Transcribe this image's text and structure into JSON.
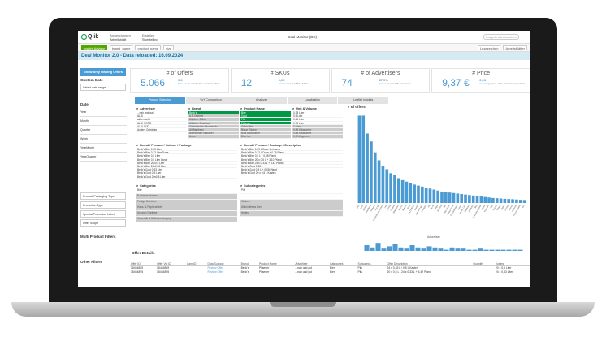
{
  "app": {
    "logo": "Qlik",
    "nav": [
      {
        "top": "Anwendungen",
        "bottom": "Arbeitsblatt"
      },
      {
        "top": "Erstellen",
        "bottom": "Storytelling"
      }
    ],
    "title": "Deal Monitor (DE)",
    "search_placeholder": "Insights durchsuchen"
  },
  "toolbar": {
    "insight_advisor": "Insight Advisor",
    "tags": [
      "brand_name",
      "product_name",
      "size"
    ],
    "buttons": [
      "Lesezeichen",
      "Arbeitsblätter"
    ]
  },
  "sheet_title": "Deal Monitor 2.0 - Data reloaded: 16.09.2024",
  "sidebar": {
    "lead_button": "Show only leading Offers",
    "custom_date_header": "Custom Date",
    "select_range": "Select date range",
    "date_header": "Date",
    "date_rows": [
      "Year",
      "Month",
      "Quarter",
      "Week",
      "YearMonth",
      "YearQuarter"
    ],
    "filter_boxes": [
      "Product Packaging Type",
      "Promotion Type",
      "Special Promotion Label",
      "Offer Scope"
    ],
    "multi_header": "Multi Product Filters",
    "other_header": "Other Filters"
  },
  "kpis": [
    {
      "title": "# of Offers",
      "value": "5.066",
      "change": "0,3",
      "sub": "from a total of 1,91 Mio available offers"
    },
    {
      "title": "# SKUs",
      "value": "12",
      "change": "0,05",
      "sub": "from a total of 48.611 SKUs"
    },
    {
      "title": "# of Advertisers",
      "value": "74",
      "change": "37,9%",
      "sub": "from a total of 195 advertisers"
    },
    {
      "title": "# Price",
      "value": "9,37 €",
      "change": "0,23",
      "sub": "is average price of the advertised products"
    }
  ],
  "tabs": [
    "Product Selection",
    "YoY Comparison",
    "Analyzer",
    "Localization",
    "Leaflet Insights"
  ],
  "filters": {
    "advertiser": {
      "title": "Advertiser",
      "items": [
        "...nah und gut",
        "ALDI",
        "aktiv-markt",
        "ALDI NORD",
        "ALDI SÜD",
        "Anders Getränke"
      ]
    },
    "brand": {
      "title": "Brand",
      "items": [
        "Beck's",
        "A.B.Original",
        "Allgäuer Büble",
        "Allgäuer Brauhaus",
        "Alpirsbacher Klosterbräu",
        "Alt Bamberg",
        "Altenburger Brauerei",
        "Astra"
      ]
    },
    "product_name": {
      "title": "Product Name",
      "items": [
        "Bier",
        "Gold",
        "Pils",
        "Pilsener",
        "Alkoholfrei",
        "Blaue Zitrone",
        "Blue Alcoholfree",
        "Blue Ice"
      ]
    },
    "unit_volume": {
      "title": "Unit & Volume",
      "items": [
        "0,33 Liter",
        "0,5 Liter",
        "0,44 Liter",
        "0,75 Liter",
        "1 Liter",
        "0,85 Kilogramm",
        "0,88 Kilogramm",
        "0,9 Kilogramm"
      ]
    },
    "bpvp": {
      "title": "Brand / Product / Volume / Package",
      "items": [
        "Beck's Bier 0,33 Liter",
        "Beck's Bier 0,33 Liter Dose",
        "Beck's Bier 0,5 Liter",
        "Beck's Bier 0,5 Liter Dose",
        "Beck's Bier 20x0,5 Liter",
        "Beck's Bier 24x0,33 Liter",
        "Beck's Gold 0,33 Liter",
        "Beck's Gold 0,5 Liter",
        "Beck's Gold 20x0,5 Liter"
      ]
    },
    "bpd": {
      "title": "Brand / Product / Package / Description",
      "items": [
        "Beck's Bier 0,33 L Dose Mehrweg",
        "Beck's Bier 0,33 L Dose + 0,25 Pfand",
        "Beck's Bier 0,5 L + 0,08 Pfand",
        "Beck's Bier 20 x 0,5 L + 3,10 Pfand",
        "Beck's Bier 24 x 0,33 L + 3,42 Pfand",
        "Beck's Gold 0,33 L",
        "Beck's Gold 0,5 L + 0,08 Pfand",
        "Beck's Gold 20 x 0,5 L Kasten"
      ]
    },
    "categories": {
      "title": "Categories",
      "items": [
        "Bier",
        "B-Warenvolumen",
        "Fertige Getränke",
        "Haus- & Papierartikel",
        "Spezial Getränke",
        "Kosmetik & Selbstversorgung"
      ]
    },
    "subcategories": {
      "title": "Subcategories",
      "items": [
        "Pils",
        "",
        "Weizen",
        "Alkoholfreies Bier",
        "Helles"
      ]
    }
  },
  "chart_data": {
    "type": "bar",
    "title": "# of offers",
    "xlabel": "Advertiser",
    "categories": [
      "EDEKA",
      "Netto",
      "REWE",
      "Kaufland",
      "Trinkgut",
      "Hol ab",
      "Getränke Hoffmann",
      "Lidl",
      "Famila",
      "Globus",
      "Marktkauf",
      "Penny",
      "Norma",
      "Real",
      "ALDI SÜD",
      "Combi",
      "nah und gut",
      "Wasgau",
      "Hit",
      "K+K",
      "Tegut",
      "Bünting",
      "Jibi",
      "Mix Markt",
      "Klaas+Kock",
      "Getränkeland",
      "Fristo",
      "Rewe City",
      "Nahkauf",
      "Markant",
      "Sky",
      "Getränke Quelle",
      "Diska",
      "Konsum",
      "Citti",
      "Dursty",
      "Wittorf",
      "Heiko",
      "Lüning",
      "Bonus",
      "Akzenta",
      "Frischemarkt",
      "Bio"
    ],
    "values": [
      880,
      880,
      700,
      620,
      510,
      430,
      370,
      340,
      300,
      280,
      250,
      230,
      215,
      200,
      185,
      175,
      165,
      155,
      145,
      135,
      125,
      115,
      110,
      105,
      100,
      95,
      90,
      85,
      80,
      75,
      70,
      65,
      60,
      55,
      50,
      48,
      45,
      42,
      40,
      38,
      35,
      32,
      30
    ]
  },
  "mini_values": [
    5,
    3,
    7,
    2,
    4,
    6,
    3,
    2,
    5,
    3,
    2,
    4,
    3,
    2,
    1,
    3,
    2,
    2,
    1,
    1,
    2,
    1,
    1,
    1,
    1,
    1,
    1,
    1
  ],
  "details": {
    "title": "Offer Details",
    "headers": [
      "Offer ID",
      "Offer Vid ID",
      "Cam-ID",
      "Data Support",
      "Brand",
      "Product Name",
      "Advertiser",
      "Categories",
      "Subcateg...",
      "Offer Description",
      "Quantity",
      "Volume"
    ],
    "rows": [
      [
        "18454889",
        "18454889",
        "",
        "Review Offer",
        "Beck's",
        "Pilsener",
        "...nah und gut",
        "Bier",
        "Pils",
        "24 x 0,33 L / 0,5 L Kasten",
        "",
        "20 x 0,5 Liter"
      ],
      [
        "18454895",
        "18454895",
        "",
        "Review Offer",
        "Beck's",
        "Pilsener",
        "...nah und gut",
        "Bier",
        "Pils",
        "20 x 0,5 L / 24 x 0,33 L + 3,42 Pfand",
        "",
        "24 x 0,33 Liter"
      ]
    ]
  }
}
